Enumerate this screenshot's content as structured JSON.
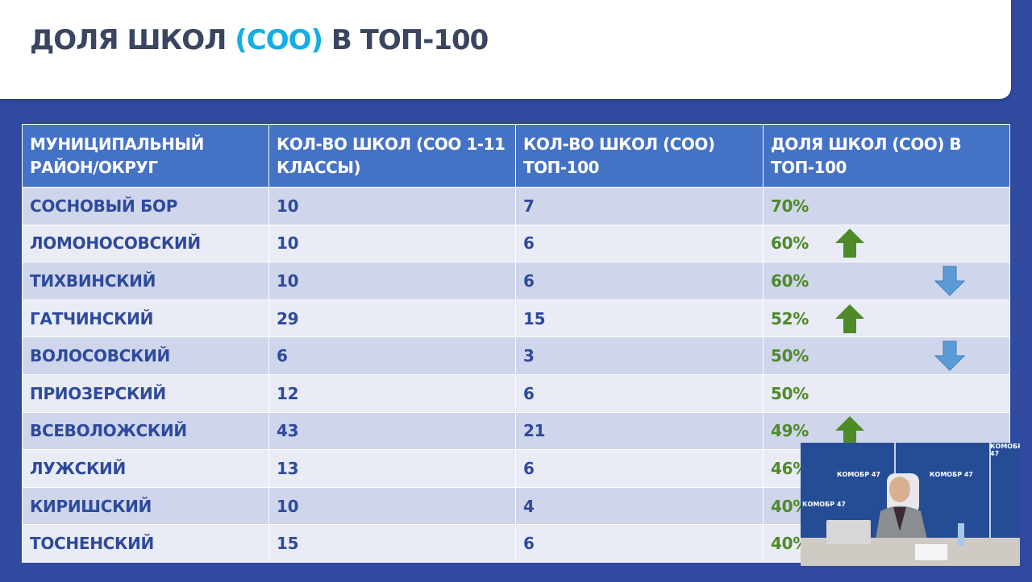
{
  "title": {
    "prefix": "ДОЛЯ ШКОЛ ",
    "accent": "(СОО)",
    "suffix": " В ТОП-100"
  },
  "colors": {
    "accent": "#14aee6",
    "header_bg": "#4472c4",
    "text": "#2d4a9c",
    "percent": "#4e8a28",
    "up": "#4e8a28",
    "down": "#5b9bd5"
  },
  "table": {
    "headers": [
      "МУНИЦИПАЛЬНЫЙ РАЙОН/ОКРУГ",
      "КОЛ-ВО ШКОЛ (СОО 1-11 КЛАССЫ)",
      "КОЛ-ВО ШКОЛ (СОО) ТОП-100",
      "ДОЛЯ ШКОЛ (СОО) В ТОП-100"
    ],
    "rows": [
      {
        "district": "СОСНОВЫЙ БОР",
        "total": "10",
        "top": "7",
        "share": "70%",
        "trend": "none"
      },
      {
        "district": "ЛОМОНОСОВСКИЙ",
        "total": "10",
        "top": "6",
        "share": "60%",
        "trend": "up"
      },
      {
        "district": "ТИХВИНСКИЙ",
        "total": "10",
        "top": "6",
        "share": "60%",
        "trend": "down"
      },
      {
        "district": "ГАТЧИНСКИЙ",
        "total": "29",
        "top": "15",
        "share": "52%",
        "trend": "up"
      },
      {
        "district": "ВОЛОСОВСКИЙ",
        "total": "6",
        "top": "3",
        "share": "50%",
        "trend": "down"
      },
      {
        "district": "ПРИОЗЕРСКИЙ",
        "total": "12",
        "top": "6",
        "share": "50%",
        "trend": "none"
      },
      {
        "district": "ВСЕВОЛОЖСКИЙ",
        "total": "43",
        "top": "21",
        "share": "49%",
        "trend": "up"
      },
      {
        "district": "ЛУЖСКИЙ",
        "total": "13",
        "top": "6",
        "share": "46%",
        "trend": "none"
      },
      {
        "district": "КИРИШСКИЙ",
        "total": "10",
        "top": "4",
        "share": "40%",
        "trend": "none"
      },
      {
        "district": "ТОСНЕНСКИЙ",
        "total": "15",
        "top": "6",
        "share": "40%",
        "trend": "none"
      }
    ]
  },
  "video": {
    "backdrop_logo": "КОМОБР 47"
  }
}
